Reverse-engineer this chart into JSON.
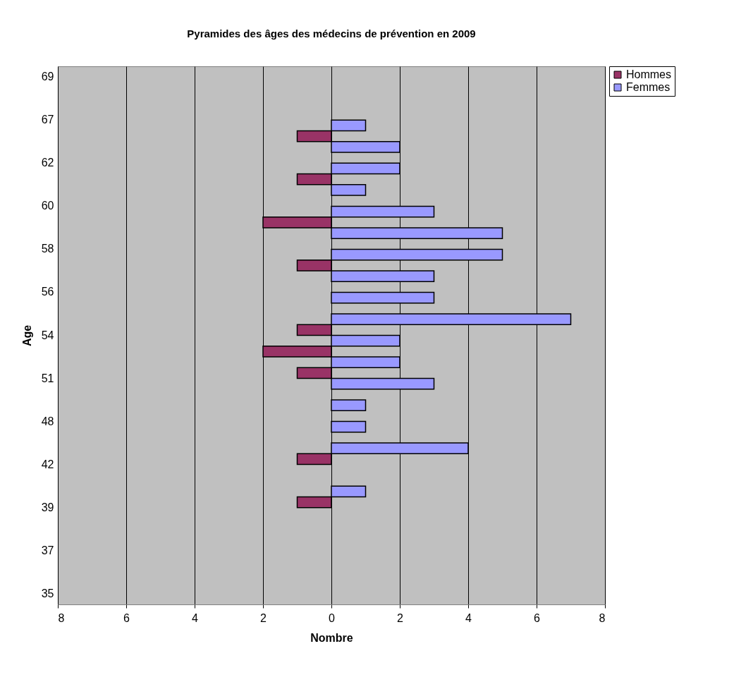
{
  "chart_data": {
    "type": "bar",
    "orientation": "horizontal",
    "title": "Pyramides des âges des médecins de prévention en 2009",
    "xlabel": "Nombre",
    "ylabel": "Age",
    "categories": [
      "69",
      null,
      "67",
      null,
      "62",
      null,
      "60",
      null,
      "58",
      null,
      "56",
      null,
      "54",
      null,
      "51",
      null,
      "48",
      null,
      "42",
      null,
      "39",
      null,
      "37",
      null,
      "35"
    ],
    "series": [
      {
        "name": "Hommes",
        "color": "#993366",
        "values": [
          null,
          null,
          null,
          -1,
          null,
          -1,
          null,
          -2,
          null,
          -1,
          null,
          null,
          -1,
          -2,
          -1,
          null,
          null,
          null,
          -1,
          null,
          -1,
          null,
          null,
          null,
          null
        ]
      },
      {
        "name": "Femmes",
        "color": "#9999ff",
        "values": [
          null,
          null,
          1,
          2,
          2,
          1,
          3,
          5,
          5,
          3,
          3,
          7,
          2,
          2,
          3,
          1,
          1,
          4,
          null,
          1,
          null,
          null,
          null,
          null,
          null
        ]
      }
    ],
    "xlim": [
      -8,
      8
    ],
    "xticks": [
      {
        "value": -8,
        "label": "8"
      },
      {
        "value": -6,
        "label": "6"
      },
      {
        "value": -4,
        "label": "4"
      },
      {
        "value": -2,
        "label": "2"
      },
      0,
      2,
      4,
      6,
      8
    ],
    "grid": "x",
    "legend": "right"
  }
}
